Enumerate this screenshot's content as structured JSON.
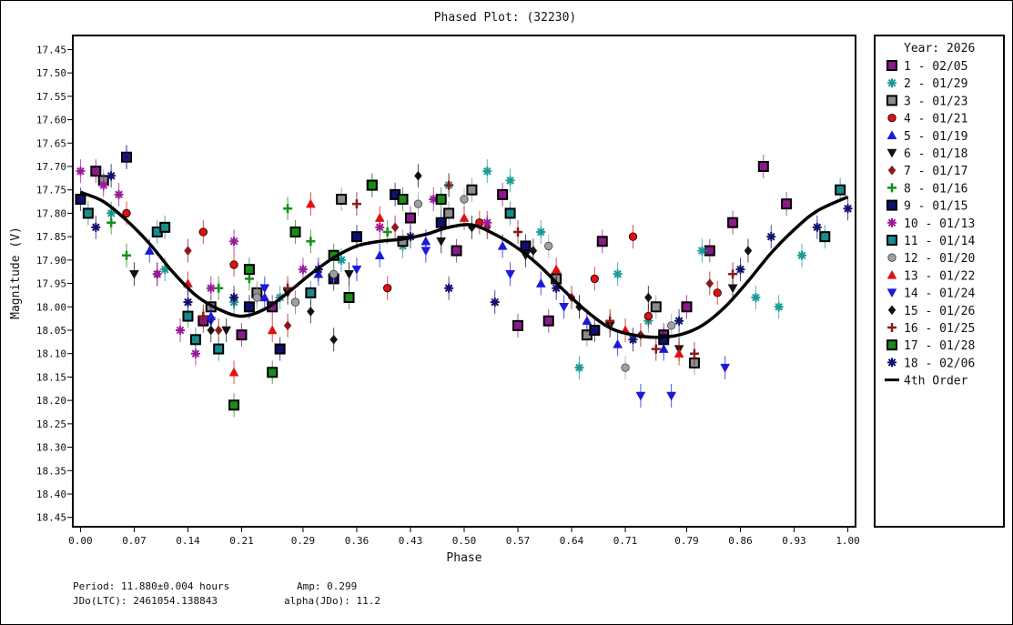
{
  "chart_data": {
    "type": "scatter",
    "title": "Phased Plot: (32230)",
    "xlabel": "Phase",
    "ylabel": "Magnitude (V)",
    "xlim": [
      -0.01,
      1.01
    ],
    "ylim": [
      17.42,
      18.47
    ],
    "y_inverted": true,
    "grid": false,
    "legend_position": "right",
    "x_ticks": [
      "0.00",
      "0.07",
      "0.14",
      "0.21",
      "0.29",
      "0.36",
      "0.43",
      "0.50",
      "0.57",
      "0.64",
      "0.71",
      "0.79",
      "0.86",
      "0.93",
      "1.00"
    ],
    "y_ticks": [
      "17.45",
      "17.50",
      "17.55",
      "17.60",
      "17.65",
      "17.70",
      "17.75",
      "17.80",
      "17.85",
      "17.90",
      "17.95",
      "18.00",
      "18.05",
      "18.10",
      "18.15",
      "18.20",
      "18.25",
      "18.30",
      "18.35",
      "18.40",
      "18.45"
    ],
    "legend_title": "Year: 2026",
    "fit": {
      "name": "4th Order",
      "phase": [
        0.0,
        0.03,
        0.06,
        0.09,
        0.12,
        0.15,
        0.18,
        0.21,
        0.24,
        0.27,
        0.3,
        0.33,
        0.36,
        0.39,
        0.42,
        0.45,
        0.48,
        0.51,
        0.54,
        0.57,
        0.6,
        0.63,
        0.66,
        0.69,
        0.72,
        0.75,
        0.78,
        0.81,
        0.84,
        0.87,
        0.9,
        0.93,
        0.96,
        1.0
      ],
      "magnitude": [
        17.755,
        17.775,
        17.815,
        17.865,
        17.925,
        17.975,
        18.005,
        18.02,
        18.005,
        17.97,
        17.93,
        17.895,
        17.87,
        17.86,
        17.855,
        17.845,
        17.83,
        17.825,
        17.845,
        17.875,
        17.915,
        17.965,
        18.01,
        18.045,
        18.06,
        18.065,
        18.06,
        18.04,
        18.0,
        17.945,
        17.885,
        17.835,
        17.795,
        17.765
      ]
    },
    "series": [
      {
        "name": "1 - 02/05",
        "marker": "square",
        "color": "#8a1a8a",
        "edge": "#000000",
        "points": [
          [
            0.02,
            17.71
          ],
          [
            0.06,
            17.68
          ],
          [
            0.16,
            18.03
          ],
          [
            0.21,
            18.06
          ],
          [
            0.25,
            18.0
          ],
          [
            0.43,
            17.81
          ],
          [
            0.49,
            17.88
          ],
          [
            0.55,
            17.76
          ],
          [
            0.57,
            18.04
          ],
          [
            0.61,
            18.03
          ],
          [
            0.68,
            17.86
          ],
          [
            0.76,
            18.06
          ],
          [
            0.79,
            18.0
          ],
          [
            0.82,
            17.88
          ],
          [
            0.85,
            17.82
          ],
          [
            0.89,
            17.7
          ],
          [
            0.92,
            17.78
          ]
        ]
      },
      {
        "name": "2 - 01/29",
        "marker": "asterisk",
        "color": "#1a9b98",
        "edge": "#1a9b98",
        "points": [
          [
            0.04,
            17.8
          ],
          [
            0.11,
            17.92
          ],
          [
            0.2,
            17.99
          ],
          [
            0.26,
            17.98
          ],
          [
            0.34,
            17.9
          ],
          [
            0.42,
            17.87
          ],
          [
            0.48,
            17.74
          ],
          [
            0.53,
            17.71
          ],
          [
            0.56,
            17.73
          ],
          [
            0.6,
            17.84
          ],
          [
            0.65,
            18.13
          ],
          [
            0.7,
            17.93
          ],
          [
            0.74,
            18.03
          ],
          [
            0.81,
            17.88
          ],
          [
            0.88,
            17.98
          ],
          [
            0.91,
            18.0
          ],
          [
            0.94,
            17.89
          ]
        ]
      },
      {
        "name": "3 - 01/23",
        "marker": "square",
        "color": "#8c8c8c",
        "edge": "#000000",
        "points": [
          [
            0.03,
            17.73
          ],
          [
            0.17,
            18.0
          ],
          [
            0.23,
            17.97
          ],
          [
            0.34,
            17.77
          ],
          [
            0.38,
            17.74
          ],
          [
            0.42,
            17.86
          ],
          [
            0.48,
            17.8
          ],
          [
            0.51,
            17.75
          ],
          [
            0.62,
            17.94
          ],
          [
            0.66,
            18.06
          ],
          [
            0.75,
            18.0
          ],
          [
            0.8,
            18.12
          ]
        ]
      },
      {
        "name": "4 - 01/21",
        "marker": "circle",
        "color": "#e01010",
        "edge": "#000000",
        "points": [
          [
            0.06,
            17.8
          ],
          [
            0.16,
            17.84
          ],
          [
            0.2,
            17.91
          ],
          [
            0.28,
            17.99
          ],
          [
            0.4,
            17.96
          ],
          [
            0.52,
            17.82
          ],
          [
            0.67,
            17.94
          ],
          [
            0.72,
            17.85
          ],
          [
            0.74,
            18.02
          ],
          [
            0.83,
            17.97
          ]
        ]
      },
      {
        "name": "5 - 01/19",
        "marker": "triangle-up",
        "color": "#1a1ad8",
        "edge": "#1a1ad8",
        "points": [
          [
            0.09,
            17.88
          ],
          [
            0.17,
            18.02
          ],
          [
            0.24,
            17.98
          ],
          [
            0.31,
            17.93
          ],
          [
            0.39,
            17.89
          ],
          [
            0.45,
            17.86
          ],
          [
            0.55,
            17.87
          ],
          [
            0.6,
            17.95
          ],
          [
            0.66,
            18.03
          ],
          [
            0.7,
            18.08
          ],
          [
            0.76,
            18.09
          ]
        ]
      },
      {
        "name": "6 - 01/18",
        "marker": "triangle-down",
        "color": "#111111",
        "edge": "#111111",
        "points": [
          [
            0.07,
            17.93
          ],
          [
            0.19,
            18.05
          ],
          [
            0.27,
            17.97
          ],
          [
            0.35,
            17.93
          ],
          [
            0.47,
            17.86
          ],
          [
            0.58,
            17.89
          ],
          [
            0.69,
            18.04
          ],
          [
            0.78,
            18.09
          ],
          [
            0.85,
            17.96
          ]
        ]
      },
      {
        "name": "7 - 01/17",
        "marker": "diamond",
        "color": "#8b1a1a",
        "edge": "#8b1a1a",
        "points": [
          [
            0.1,
            17.93
          ],
          [
            0.14,
            17.88
          ],
          [
            0.18,
            18.05
          ],
          [
            0.27,
            18.04
          ],
          [
            0.41,
            17.83
          ],
          [
            0.53,
            17.83
          ],
          [
            0.64,
            17.98
          ],
          [
            0.73,
            18.06
          ],
          [
            0.82,
            17.95
          ]
        ]
      },
      {
        "name": "8 - 01/16",
        "marker": "plus",
        "color": "#169016",
        "edge": "#169016",
        "points": [
          [
            0.04,
            17.82
          ],
          [
            0.06,
            17.89
          ],
          [
            0.18,
            17.96
          ],
          [
            0.22,
            17.94
          ],
          [
            0.27,
            17.79
          ],
          [
            0.3,
            17.86
          ],
          [
            0.4,
            17.84
          ]
        ]
      },
      {
        "name": "9 - 01/15",
        "marker": "square",
        "color": "#101070",
        "edge": "#000000",
        "points": [
          [
            0.0,
            17.77
          ],
          [
            0.22,
            18.0
          ],
          [
            0.26,
            18.09
          ],
          [
            0.33,
            17.94
          ],
          [
            0.36,
            17.85
          ],
          [
            0.41,
            17.76
          ],
          [
            0.47,
            17.82
          ],
          [
            0.58,
            17.87
          ],
          [
            0.67,
            18.05
          ],
          [
            0.76,
            18.07
          ]
        ]
      },
      {
        "name": "10 - 01/13",
        "marker": "asterisk",
        "color": "#9b1a9b",
        "edge": "#9b1a9b",
        "points": [
          [
            0.0,
            17.71
          ],
          [
            0.03,
            17.74
          ],
          [
            0.05,
            17.76
          ],
          [
            0.1,
            17.93
          ],
          [
            0.13,
            18.05
          ],
          [
            0.15,
            18.1
          ],
          [
            0.17,
            17.96
          ],
          [
            0.2,
            17.86
          ],
          [
            0.29,
            17.92
          ],
          [
            0.39,
            17.83
          ],
          [
            0.46,
            17.77
          ],
          [
            0.53,
            17.82
          ]
        ]
      },
      {
        "name": "11 - 01/14",
        "marker": "square",
        "color": "#1a8a8a",
        "edge": "#000000",
        "points": [
          [
            0.01,
            17.8
          ],
          [
            0.1,
            17.84
          ],
          [
            0.11,
            17.83
          ],
          [
            0.14,
            18.02
          ],
          [
            0.15,
            18.07
          ],
          [
            0.18,
            18.09
          ],
          [
            0.3,
            17.97
          ],
          [
            0.56,
            17.8
          ],
          [
            0.97,
            17.85
          ],
          [
            0.99,
            17.75
          ]
        ]
      },
      {
        "name": "12 - 01/20",
        "marker": "circle",
        "color": "#a0a0a0",
        "edge": "#404040",
        "points": [
          [
            0.23,
            17.98
          ],
          [
            0.28,
            17.99
          ],
          [
            0.33,
            17.93
          ],
          [
            0.44,
            17.78
          ],
          [
            0.5,
            17.77
          ],
          [
            0.61,
            17.87
          ],
          [
            0.71,
            18.13
          ],
          [
            0.77,
            18.04
          ]
        ]
      },
      {
        "name": "13 - 01/22",
        "marker": "triangle-up",
        "color": "#e01010",
        "edge": "#e01010",
        "points": [
          [
            0.14,
            17.95
          ],
          [
            0.2,
            18.14
          ],
          [
            0.25,
            18.05
          ],
          [
            0.3,
            17.78
          ],
          [
            0.39,
            17.81
          ],
          [
            0.5,
            17.81
          ],
          [
            0.62,
            17.92
          ],
          [
            0.71,
            18.05
          ],
          [
            0.78,
            18.1
          ]
        ]
      },
      {
        "name": "14 - 01/24",
        "marker": "triangle-down",
        "color": "#1a1ad8",
        "edge": "#1a1ad8",
        "points": [
          [
            0.17,
            18.03
          ],
          [
            0.24,
            17.96
          ],
          [
            0.36,
            17.92
          ],
          [
            0.45,
            17.88
          ],
          [
            0.56,
            17.93
          ],
          [
            0.63,
            18.0
          ],
          [
            0.73,
            18.19
          ],
          [
            0.77,
            18.19
          ],
          [
            0.84,
            18.13
          ]
        ]
      },
      {
        "name": "15 - 01/26",
        "marker": "diamond",
        "color": "#111111",
        "edge": "#111111",
        "points": [
          [
            0.17,
            18.05
          ],
          [
            0.3,
            18.01
          ],
          [
            0.33,
            18.07
          ],
          [
            0.44,
            17.72
          ],
          [
            0.51,
            17.83
          ],
          [
            0.59,
            17.88
          ],
          [
            0.65,
            18.0
          ],
          [
            0.74,
            17.98
          ],
          [
            0.87,
            17.88
          ]
        ]
      },
      {
        "name": "16 - 01/25",
        "marker": "plus",
        "color": "#8b1a1a",
        "edge": "#8b1a1a",
        "points": [
          [
            0.16,
            18.02
          ],
          [
            0.27,
            17.96
          ],
          [
            0.36,
            17.78
          ],
          [
            0.48,
            17.74
          ],
          [
            0.57,
            17.84
          ],
          [
            0.69,
            18.03
          ],
          [
            0.75,
            18.09
          ],
          [
            0.8,
            18.1
          ],
          [
            0.85,
            17.93
          ]
        ]
      },
      {
        "name": "17 - 01/28",
        "marker": "square",
        "color": "#1a8a1a",
        "edge": "#000000",
        "points": [
          [
            0.2,
            18.21
          ],
          [
            0.22,
            17.92
          ],
          [
            0.25,
            18.14
          ],
          [
            0.28,
            17.84
          ],
          [
            0.33,
            17.89
          ],
          [
            0.35,
            17.98
          ],
          [
            0.38,
            17.74
          ],
          [
            0.42,
            17.77
          ],
          [
            0.47,
            17.77
          ]
        ]
      },
      {
        "name": "18 - 02/06",
        "marker": "asterisk",
        "color": "#101070",
        "edge": "#101070",
        "points": [
          [
            0.02,
            17.83
          ],
          [
            0.04,
            17.72
          ],
          [
            0.06,
            17.68
          ],
          [
            0.14,
            17.99
          ],
          [
            0.2,
            17.98
          ],
          [
            0.31,
            17.92
          ],
          [
            0.43,
            17.85
          ],
          [
            0.48,
            17.96
          ],
          [
            0.54,
            17.99
          ],
          [
            0.62,
            17.96
          ],
          [
            0.72,
            18.07
          ],
          [
            0.78,
            18.03
          ],
          [
            0.86,
            17.92
          ],
          [
            0.9,
            17.85
          ],
          [
            0.96,
            17.83
          ],
          [
            1.0,
            17.79
          ]
        ]
      }
    ]
  },
  "info": {
    "period": "Period: 11.880±0.004 hours",
    "amp": "Amp: 0.299",
    "jdo": "JDo(LTC): 2461054.138843",
    "alpha": "alpha(JDo): 11.2"
  },
  "colors": {
    "frame": "#000000",
    "fit_line": "#000000"
  }
}
